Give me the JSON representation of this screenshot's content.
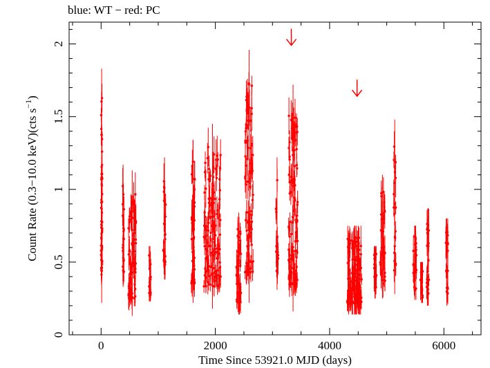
{
  "chart_data": {
    "type": "scatter",
    "title": "blue: WT − red: PC",
    "xlabel": "Time Since 53921.0 MJD (days)",
    "ylabel_main": "Count Rate (0.3−10.0 keV)(cts s",
    "ylabel_sup": "−1",
    "ylabel_end": ")",
    "xlim": [
      -560,
      6650
    ],
    "ylim": [
      0,
      2.15
    ],
    "x_ticks": [
      0,
      2000,
      4000,
      6000
    ],
    "x_tick_labels": [
      "0",
      "2000",
      "4000",
      "6000"
    ],
    "y_ticks": [
      0,
      0.5,
      1,
      1.5,
      2
    ],
    "y_tick_labels": [
      "0",
      "0.5",
      "1",
      "1.5",
      "2"
    ],
    "grid": false,
    "legend": "none",
    "colors": {
      "pc": "#ff0000",
      "wt": "#0000ff",
      "axis": "#000000"
    },
    "series": [
      {
        "name": "PC",
        "clusters": [
          {
            "x": [
              0,
              20
            ],
            "y": [
              0.22,
              1.83
            ],
            "n": 60
          },
          {
            "x": [
              370,
              400
            ],
            "y": [
              0.33,
              1.17
            ],
            "n": 22
          },
          {
            "x": [
              480,
              610
            ],
            "y": [
              0.13,
              1.13
            ],
            "n": 75
          },
          {
            "x": [
              840,
              870
            ],
            "y": [
              0.23,
              0.61
            ],
            "n": 14
          },
          {
            "x": [
              1090,
              1130
            ],
            "y": [
              0.38,
              1.22
            ],
            "n": 24
          },
          {
            "x": [
              1580,
              1640
            ],
            "y": [
              0.22,
              1.34
            ],
            "n": 40
          },
          {
            "x": [
              1800,
              2100
            ],
            "y": [
              0.18,
              1.45
            ],
            "n": 130
          },
          {
            "x": [
              2370,
              2450
            ],
            "y": [
              0.14,
              0.84
            ],
            "n": 40
          },
          {
            "x": [
              2520,
              2660
            ],
            "y": [
              0.22,
              1.96
            ],
            "n": 90
          },
          {
            "x": [
              3060,
              3100
            ],
            "y": [
              0.31,
              1.22
            ],
            "n": 16
          },
          {
            "x": [
              3280,
              3440
            ],
            "y": [
              0.16,
              1.72
            ],
            "n": 110
          },
          {
            "x": [
              4310,
              4560
            ],
            "y": [
              0.14,
              0.75
            ],
            "n": 150
          },
          {
            "x": [
              4780,
              4820
            ],
            "y": [
              0.25,
              0.61
            ],
            "n": 18
          },
          {
            "x": [
              4880,
              4970
            ],
            "y": [
              0.25,
              1.1
            ],
            "n": 35
          },
          {
            "x": [
              5120,
              5160
            ],
            "y": [
              0.28,
              1.48
            ],
            "n": 20
          },
          {
            "x": [
              5460,
              5520
            ],
            "y": [
              0.24,
              0.75
            ],
            "n": 24
          },
          {
            "x": [
              5590,
              5630
            ],
            "y": [
              0.22,
              0.5
            ],
            "n": 14
          },
          {
            "x": [
              5700,
              5740
            ],
            "y": [
              0.2,
              0.87
            ],
            "n": 22
          },
          {
            "x": [
              6030,
              6070
            ],
            "y": [
              0.2,
              0.8
            ],
            "n": 20
          }
        ],
        "upper_limits": [
          {
            "x": 3330,
            "y": 2.0
          },
          {
            "x": 4480,
            "y": 1.65
          }
        ]
      }
    ]
  }
}
